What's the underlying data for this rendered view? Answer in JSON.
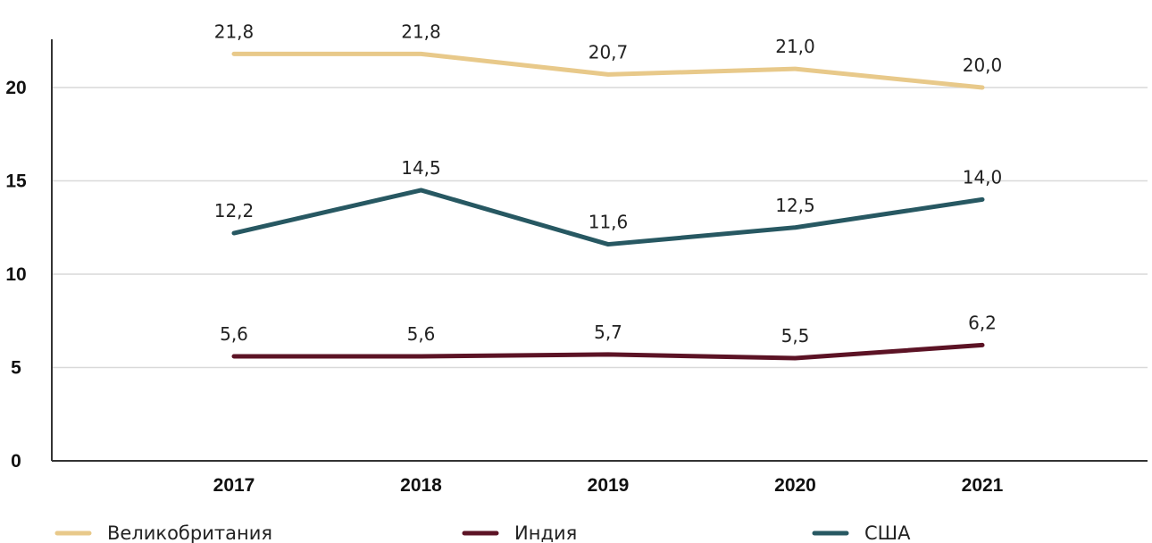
{
  "chart_data": {
    "type": "line",
    "categories": [
      "2017",
      "2018",
      "2019",
      "2020",
      "2021"
    ],
    "ylim": [
      0,
      23
    ],
    "yticks": [
      "0",
      "5",
      "10",
      "15",
      "20"
    ],
    "grid": true,
    "legend_position": "bottom",
    "series": [
      {
        "name": "Великобритания",
        "color": "#e8c98a",
        "values": [
          21.8,
          21.8,
          20.7,
          21.0,
          20.0
        ],
        "labels": [
          "21,8",
          "21,8",
          "20,7",
          "21,0",
          "20,0"
        ]
      },
      {
        "name": "Индия",
        "color": "#5c1325",
        "values": [
          5.6,
          5.6,
          5.7,
          5.5,
          6.2
        ],
        "labels": [
          "5,6",
          "5,6",
          "5,7",
          "5,5",
          "6,2"
        ]
      },
      {
        "name": "США",
        "color": "#275862",
        "values": [
          12.2,
          14.5,
          11.6,
          12.5,
          14.0
        ],
        "labels": [
          "12,2",
          "14,5",
          "11,6",
          "12,5",
          "14,0"
        ]
      }
    ]
  }
}
